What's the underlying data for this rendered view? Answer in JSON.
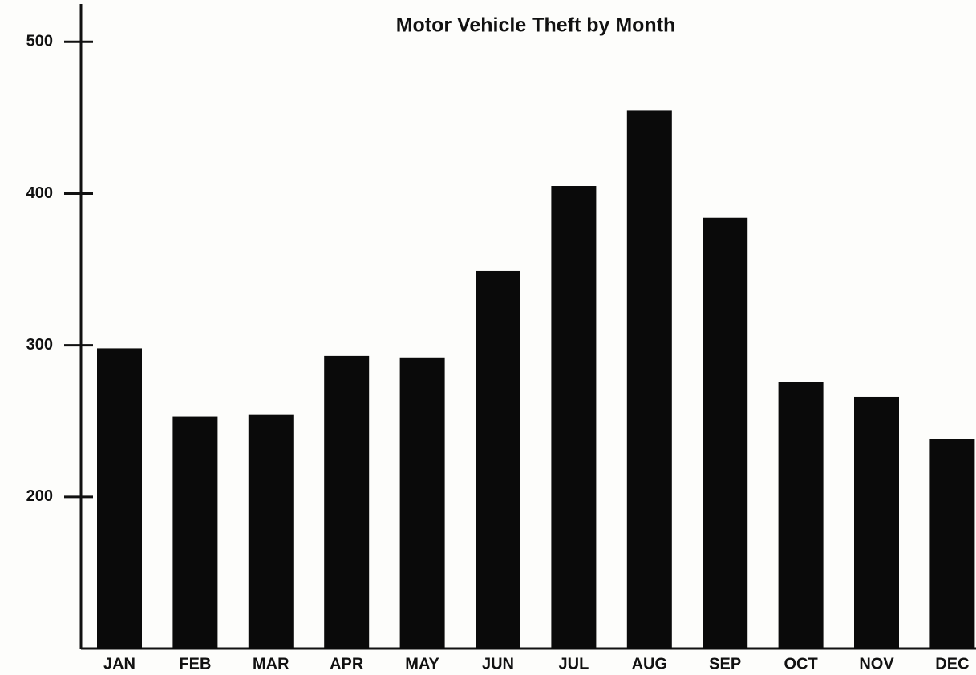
{
  "chart_data": {
    "type": "bar",
    "title": "Motor Vehicle Theft by Month",
    "categories": [
      "JAN",
      "FEB",
      "MAR",
      "APR",
      "MAY",
      "JUN",
      "JUL",
      "AUG",
      "SEP",
      "OCT",
      "NOV",
      "DEC"
    ],
    "values": [
      298,
      253,
      254,
      293,
      292,
      349,
      405,
      455,
      384,
      276,
      266,
      238
    ],
    "color": "#0a0a0a",
    "ylim": [
      100,
      525
    ],
    "yticks": [
      200,
      300,
      400,
      500
    ],
    "grid": false
  }
}
